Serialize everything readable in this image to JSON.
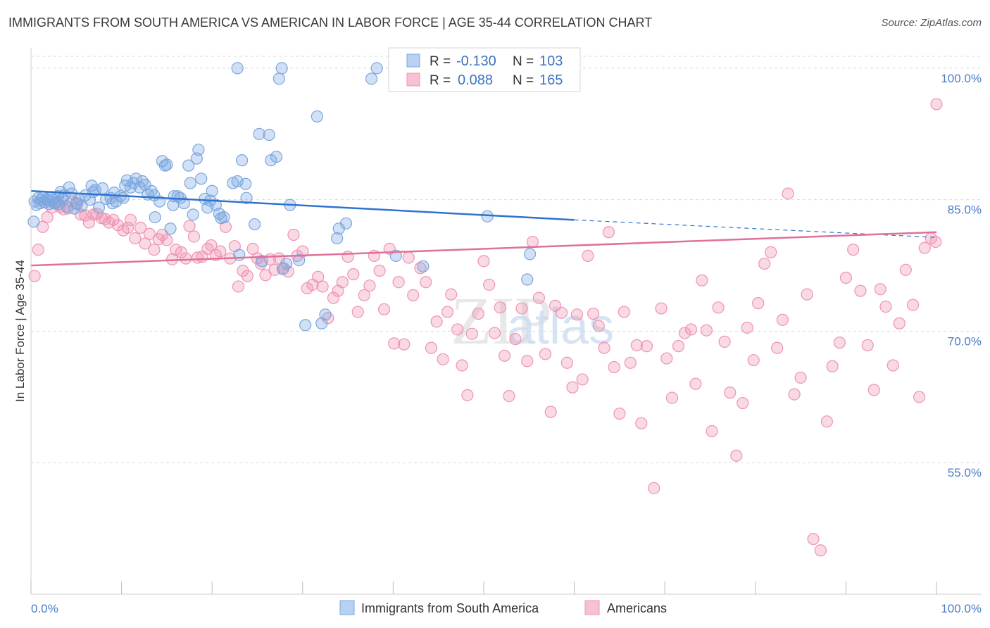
{
  "header": {
    "title": "IMMIGRANTS FROM SOUTH AMERICA VS AMERICAN IN LABOR FORCE | AGE 35-44 CORRELATION CHART",
    "source": "Source: ZipAtlas.com"
  },
  "colors": {
    "blue": "#7aa7e0",
    "blue_line": "#2f73d0",
    "pink": "#ef93b3",
    "pink_line": "#e0709a",
    "grid": "#d8d8d8",
    "tick_label": "#4a7cc8"
  },
  "watermark": "ZIPatlas",
  "chart_data": {
    "type": "scatter",
    "ylabel": "In Labor Force | Age 35-44",
    "xlim": [
      0,
      100
    ],
    "ylim": [
      40,
      102
    ],
    "x_tick_labels": [
      "0.0%",
      "100.0%"
    ],
    "y_ticks": [
      {
        "value": 55,
        "label": "55.0%"
      },
      {
        "value": 70,
        "label": "70.0%"
      },
      {
        "value": 85,
        "label": "85.0%"
      },
      {
        "value": 100,
        "label": "100.0%"
      }
    ],
    "legend": {
      "placement": "top-center",
      "rows": [
        {
          "r_label": "R =",
          "r_value": "-0.130",
          "n_label": "N =",
          "n_value": "103"
        },
        {
          "r_label": "R =",
          "r_value": "0.088",
          "n_label": "N =",
          "n_value": "165"
        }
      ]
    },
    "bottom_legend": [
      "Immigrants from South America",
      "Americans"
    ],
    "series": [
      {
        "name": "Immigrants from South America",
        "color": "#7aa7e0",
        "trend": {
          "x": [
            0,
            60
          ],
          "y": [
            86.0,
            82.7
          ],
          "dashed_to": [
            100,
            80.7
          ]
        },
        "points": [
          [
            0.3,
            82.5
          ],
          [
            0.4,
            84.8
          ],
          [
            0.6,
            84.4
          ],
          [
            0.8,
            85.2
          ],
          [
            1.0,
            84.6
          ],
          [
            1.1,
            85.0
          ],
          [
            1.3,
            85.3
          ],
          [
            1.5,
            84.7
          ],
          [
            1.7,
            85.1
          ],
          [
            1.9,
            84.9
          ],
          [
            2.0,
            84.5
          ],
          [
            2.2,
            85.3
          ],
          [
            2.4,
            85.0
          ],
          [
            2.6,
            84.6
          ],
          [
            2.8,
            84.7
          ],
          [
            3.0,
            85.4
          ],
          [
            3.1,
            84.5
          ],
          [
            3.3,
            85.9
          ],
          [
            3.5,
            85.1
          ],
          [
            3.7,
            85.5
          ],
          [
            4.0,
            84.2
          ],
          [
            4.2,
            86.4
          ],
          [
            4.5,
            85.7
          ],
          [
            4.8,
            84.0
          ],
          [
            5.0,
            84.6
          ],
          [
            5.3,
            85.1
          ],
          [
            5.6,
            84.3
          ],
          [
            6.0,
            85.5
          ],
          [
            6.5,
            85.0
          ],
          [
            6.7,
            86.6
          ],
          [
            6.9,
            85.9
          ],
          [
            7.1,
            86.1
          ],
          [
            7.5,
            84.1
          ],
          [
            7.9,
            86.3
          ],
          [
            8.3,
            85.1
          ],
          [
            8.8,
            85.2
          ],
          [
            9.0,
            84.6
          ],
          [
            9.2,
            85.8
          ],
          [
            9.4,
            84.8
          ],
          [
            9.9,
            85.4
          ],
          [
            10.2,
            85.2
          ],
          [
            10.4,
            86.6
          ],
          [
            10.6,
            87.2
          ],
          [
            11.0,
            86.4
          ],
          [
            11.3,
            86.9
          ],
          [
            11.6,
            87.4
          ],
          [
            12.0,
            86.4
          ],
          [
            12.3,
            87.1
          ],
          [
            12.6,
            86.7
          ],
          [
            12.9,
            85.6
          ],
          [
            13.3,
            86.0
          ],
          [
            13.6,
            85.5
          ],
          [
            13.7,
            83.0
          ],
          [
            14.2,
            84.8
          ],
          [
            14.5,
            89.4
          ],
          [
            14.8,
            88.9
          ],
          [
            15.0,
            89.0
          ],
          [
            15.4,
            81.7
          ],
          [
            15.7,
            84.4
          ],
          [
            15.8,
            85.4
          ],
          [
            16.2,
            85.4
          ],
          [
            16.5,
            85.2
          ],
          [
            16.9,
            84.6
          ],
          [
            17.4,
            88.9
          ],
          [
            17.6,
            86.9
          ],
          [
            17.9,
            83.3
          ],
          [
            18.3,
            89.7
          ],
          [
            18.5,
            90.7
          ],
          [
            18.8,
            87.4
          ],
          [
            19.2,
            85.1
          ],
          [
            19.5,
            84.1
          ],
          [
            19.8,
            84.9
          ],
          [
            20.0,
            86.0
          ],
          [
            20.4,
            84.4
          ],
          [
            20.8,
            83.4
          ],
          [
            21.0,
            82.9
          ],
          [
            21.3,
            83.0
          ],
          [
            22.3,
            86.9
          ],
          [
            22.8,
            87.1
          ],
          [
            23.0,
            78.7
          ],
          [
            23.3,
            89.5
          ],
          [
            23.7,
            86.8
          ],
          [
            23.8,
            85.2
          ],
          [
            24.7,
            82.2
          ],
          [
            25.2,
            92.5
          ],
          [
            25.5,
            78.0
          ],
          [
            26.3,
            92.4
          ],
          [
            26.5,
            89.5
          ],
          [
            27.1,
            89.9
          ],
          [
            27.4,
            98.8
          ],
          [
            27.8,
            77.1
          ],
          [
            28.2,
            77.7
          ],
          [
            28.6,
            84.4
          ],
          [
            29.6,
            78.1
          ],
          [
            30.3,
            70.7
          ],
          [
            31.6,
            94.5
          ],
          [
            32.1,
            70.9
          ],
          [
            32.5,
            71.9
          ],
          [
            33.8,
            80.6
          ],
          [
            34.0,
            81.7
          ],
          [
            34.8,
            82.3
          ],
          [
            37.6,
            98.8
          ],
          [
            40.3,
            78.6
          ],
          [
            43.3,
            77.4
          ],
          [
            50.4,
            83.1
          ],
          [
            54.8,
            75.9
          ],
          [
            55.1,
            78.8
          ],
          [
            22.8,
            100
          ],
          [
            27.7,
            100
          ],
          [
            38.2,
            100
          ]
        ]
      },
      {
        "name": "Americans",
        "color": "#ef93b3",
        "trend": {
          "x": [
            0,
            100
          ],
          "y": [
            77.5,
            81.3
          ]
        },
        "points": [
          [
            0.4,
            76.3
          ],
          [
            0.8,
            79.3
          ],
          [
            1.3,
            81.9
          ],
          [
            1.8,
            83.0
          ],
          [
            2.3,
            84.1
          ],
          [
            2.7,
            84.6
          ],
          [
            3.2,
            84.2
          ],
          [
            3.6,
            83.9
          ],
          [
            4.1,
            84.0
          ],
          [
            4.5,
            84.8
          ],
          [
            5.1,
            84.5
          ],
          [
            5.5,
            83.3
          ],
          [
            6.0,
            83.2
          ],
          [
            6.4,
            82.4
          ],
          [
            6.9,
            83.3
          ],
          [
            7.3,
            83.4
          ],
          [
            7.8,
            82.9
          ],
          [
            8.2,
            82.8
          ],
          [
            8.6,
            82.4
          ],
          [
            9.1,
            82.7
          ],
          [
            9.6,
            82.1
          ],
          [
            10.2,
            81.5
          ],
          [
            10.7,
            81.8
          ],
          [
            11.0,
            82.7
          ],
          [
            11.5,
            80.6
          ],
          [
            12.1,
            81.8
          ],
          [
            12.6,
            80.0
          ],
          [
            13.1,
            81.1
          ],
          [
            13.6,
            79.3
          ],
          [
            14.1,
            80.5
          ],
          [
            14.5,
            81.0
          ],
          [
            15.0,
            80.4
          ],
          [
            15.6,
            78.2
          ],
          [
            16.0,
            79.3
          ],
          [
            16.6,
            79.0
          ],
          [
            17.1,
            78.3
          ],
          [
            17.5,
            82.0
          ],
          [
            18.0,
            80.8
          ],
          [
            18.4,
            78.4
          ],
          [
            18.9,
            78.5
          ],
          [
            19.5,
            79.4
          ],
          [
            19.9,
            79.8
          ],
          [
            20.4,
            78.7
          ],
          [
            20.9,
            79.1
          ],
          [
            21.5,
            81.9
          ],
          [
            22.0,
            78.3
          ],
          [
            22.5,
            79.7
          ],
          [
            22.9,
            75.1
          ],
          [
            23.4,
            76.9
          ],
          [
            23.9,
            76.3
          ],
          [
            24.5,
            79.4
          ],
          [
            25.0,
            78.3
          ],
          [
            25.4,
            77.7
          ],
          [
            25.9,
            76.4
          ],
          [
            26.4,
            78.2
          ],
          [
            26.9,
            77.0
          ],
          [
            27.4,
            78.3
          ],
          [
            27.9,
            77.2
          ],
          [
            28.4,
            76.8
          ],
          [
            29.0,
            81.0
          ],
          [
            29.4,
            78.6
          ],
          [
            30.0,
            79.1
          ],
          [
            30.5,
            74.9
          ],
          [
            31.1,
            75.3
          ],
          [
            31.7,
            76.2
          ],
          [
            32.2,
            75.1
          ],
          [
            32.8,
            71.5
          ],
          [
            33.4,
            73.8
          ],
          [
            33.9,
            74.6
          ],
          [
            34.4,
            75.6
          ],
          [
            35.0,
            78.5
          ],
          [
            35.6,
            76.5
          ],
          [
            36.1,
            72.2
          ],
          [
            36.8,
            74.1
          ],
          [
            37.4,
            75.2
          ],
          [
            37.9,
            78.6
          ],
          [
            38.5,
            76.9
          ],
          [
            39.0,
            72.5
          ],
          [
            39.6,
            79.4
          ],
          [
            40.1,
            68.6
          ],
          [
            40.6,
            75.6
          ],
          [
            41.2,
            68.5
          ],
          [
            41.7,
            78.4
          ],
          [
            42.2,
            74.1
          ],
          [
            43.0,
            77.2
          ],
          [
            43.6,
            75.6
          ],
          [
            44.2,
            68.1
          ],
          [
            44.8,
            71.1
          ],
          [
            45.5,
            66.8
          ],
          [
            46.0,
            72.2
          ],
          [
            46.4,
            74.2
          ],
          [
            47.1,
            70.2
          ],
          [
            47.6,
            66.1
          ],
          [
            48.2,
            62.7
          ],
          [
            48.7,
            69.7
          ],
          [
            49.4,
            72.0
          ],
          [
            50.0,
            78.0
          ],
          [
            50.6,
            75.3
          ],
          [
            51.2,
            69.8
          ],
          [
            51.8,
            72.7
          ],
          [
            52.3,
            67.2
          ],
          [
            52.8,
            62.6
          ],
          [
            53.5,
            69.1
          ],
          [
            54.2,
            72.6
          ],
          [
            54.8,
            66.6
          ],
          [
            55.4,
            80.2
          ],
          [
            56.1,
            73.8
          ],
          [
            56.8,
            67.4
          ],
          [
            57.4,
            60.8
          ],
          [
            57.9,
            72.9
          ],
          [
            58.6,
            72.1
          ],
          [
            59.2,
            66.4
          ],
          [
            59.8,
            63.6
          ],
          [
            60.3,
            71.9
          ],
          [
            60.9,
            64.5
          ],
          [
            61.5,
            78.6
          ],
          [
            62.1,
            72.0
          ],
          [
            62.7,
            70.6
          ],
          [
            63.3,
            68.1
          ],
          [
            63.8,
            81.3
          ],
          [
            64.4,
            65.9
          ],
          [
            65.0,
            60.6
          ],
          [
            65.5,
            72.2
          ],
          [
            66.2,
            66.4
          ],
          [
            66.9,
            68.4
          ],
          [
            67.4,
            59.5
          ],
          [
            68.0,
            68.3
          ],
          [
            68.8,
            52.1
          ],
          [
            69.6,
            72.6
          ],
          [
            70.2,
            66.9
          ],
          [
            70.8,
            62.4
          ],
          [
            71.5,
            68.3
          ],
          [
            72.2,
            69.8
          ],
          [
            72.9,
            70.2
          ],
          [
            73.4,
            64.0
          ],
          [
            74.1,
            75.8
          ],
          [
            74.6,
            70.1
          ],
          [
            75.2,
            58.6
          ],
          [
            75.9,
            72.7
          ],
          [
            76.6,
            68.8
          ],
          [
            77.2,
            63.0
          ],
          [
            77.9,
            55.8
          ],
          [
            78.6,
            61.8
          ],
          [
            79.1,
            70.4
          ],
          [
            79.8,
            66.7
          ],
          [
            80.3,
            73.2
          ],
          [
            81.0,
            77.7
          ],
          [
            81.7,
            79.0
          ],
          [
            82.4,
            68.1
          ],
          [
            83.0,
            71.3
          ],
          [
            83.6,
            85.7
          ],
          [
            84.3,
            62.8
          ],
          [
            85.0,
            64.7
          ],
          [
            85.7,
            74.2
          ],
          [
            86.4,
            46.3
          ],
          [
            87.2,
            45.0
          ],
          [
            87.9,
            59.7
          ],
          [
            88.5,
            66.0
          ],
          [
            89.3,
            68.7
          ],
          [
            90.0,
            76.1
          ],
          [
            90.8,
            79.3
          ],
          [
            91.6,
            74.6
          ],
          [
            92.4,
            68.4
          ],
          [
            93.1,
            63.3
          ],
          [
            93.8,
            74.8
          ],
          [
            94.4,
            72.8
          ],
          [
            95.2,
            66.1
          ],
          [
            95.9,
            70.9
          ],
          [
            96.6,
            77.0
          ],
          [
            97.4,
            73.0
          ],
          [
            98.1,
            62.5
          ],
          [
            98.7,
            79.5
          ],
          [
            99.4,
            80.6
          ],
          [
            99.9,
            80.2
          ],
          [
            100.0,
            95.9
          ]
        ]
      }
    ]
  }
}
